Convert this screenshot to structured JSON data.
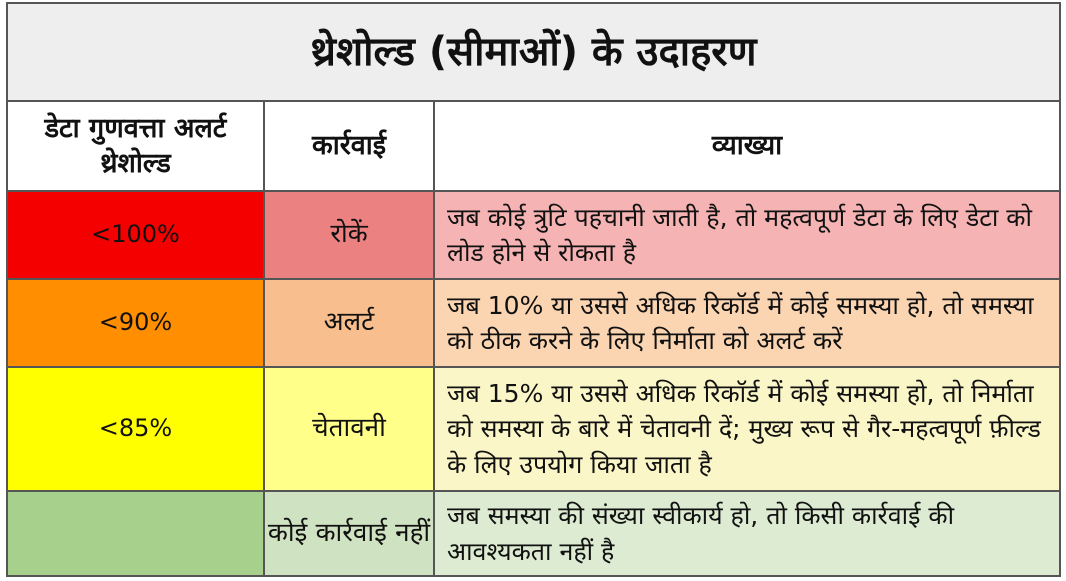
{
  "title": "थ्रेशोल्ड (सीमाओं) के उदाहरण",
  "headers": {
    "threshold": "डेटा गुणवत्ता अलर्ट थ्रेशोल्ड",
    "action": "कार्रवाई",
    "explanation": "व्याख्या"
  },
  "rows": [
    {
      "threshold": "<100%",
      "action": "रोकें",
      "explanation": "जब कोई त्रुटि पहचानी जाती है, तो महत्वपूर्ण डेटा के लिए डेटा को लोड होने से रोकता है",
      "colors": {
        "threshold": "#f40000",
        "action": "#ec8181",
        "explanation": "#f5b3b3"
      }
    },
    {
      "threshold": "<90%",
      "action": "अलर्ट",
      "explanation": "जब 10% या उससे अधिक रिकॉर्ड में कोई समस्या हो, तो समस्या को ठीक करने के लिए निर्माता को अलर्ट करें",
      "colors": {
        "threshold": "#ff8f00",
        "action": "#f8be8e",
        "explanation": "#fbd5b2"
      }
    },
    {
      "threshold": "<85%",
      "action": "चेतावनी",
      "explanation": "जब 15% या उससे अधिक रिकॉर्ड में कोई समस्या हो, तो निर्माता को समस्या के बारे में चेतावनी दें; मुख्य रूप से गैर-महत्वपूर्ण फ़ील्ड के लिए उपयोग किया जाता है",
      "colors": {
        "threshold": "#ffff00",
        "action": "#ffff8a",
        "explanation": "#fbf6c7"
      }
    },
    {
      "threshold": "",
      "action": "कोई कार्रवाई नहीं",
      "explanation": "जब समस्या की संख्या स्वीकार्य हो, तो किसी कार्रवाई की आवश्यकता नहीं है",
      "colors": {
        "threshold": "#a8d08d",
        "action": "#cfe2c1",
        "explanation": "#dcebd2"
      }
    }
  ]
}
